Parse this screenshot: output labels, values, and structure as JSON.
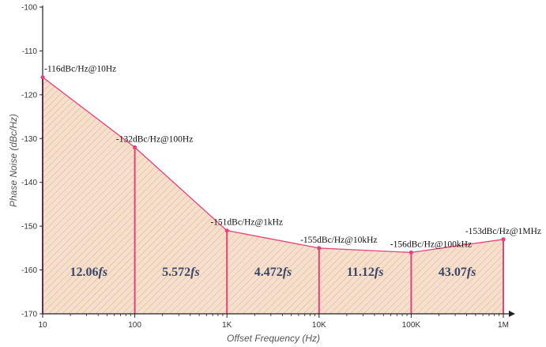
{
  "chart_data": {
    "type": "area",
    "title": "",
    "xlabel": "Offset Frequency (Hz)",
    "ylabel": "Phase Noise (dBc/Hz)",
    "x_scale": "log",
    "xlim": [
      10,
      1000000
    ],
    "ylim": [
      -170,
      -100
    ],
    "x_tick_values": [
      10,
      100,
      1000,
      10000,
      100000,
      1000000
    ],
    "x_tick_labels": [
      "10",
      "100",
      "1K",
      "10K",
      "100K",
      "1M"
    ],
    "y_tick_values": [
      -100,
      -110,
      -120,
      -130,
      -140,
      -150,
      -160,
      -170
    ],
    "y_tick_labels": [
      "-100",
      "-110",
      "-120",
      "-130",
      "-140",
      "-150",
      "-160",
      "-170"
    ],
    "grid": false,
    "points": [
      {
        "x": 10,
        "y": -116,
        "label": "-116dBc/Hz@10Hz"
      },
      {
        "x": 100,
        "y": -132,
        "label": "-132dBc/Hz@100Hz"
      },
      {
        "x": 1000,
        "y": -151,
        "label": "-151dBc/Hz@1kHz"
      },
      {
        "x": 10000,
        "y": -155,
        "label": "-155dBc/Hz@10kHz"
      },
      {
        "x": 100000,
        "y": -156,
        "label": "-156dBc/Hz@100kHz"
      },
      {
        "x": 1000000,
        "y": -153,
        "label": "-153dBc/Hz@1MHz"
      }
    ],
    "bands": [
      {
        "from": 10,
        "to": 100,
        "value": "12.06",
        "unit": "fs"
      },
      {
        "from": 100,
        "to": 1000,
        "value": "5.572",
        "unit": "fs"
      },
      {
        "from": 1000,
        "to": 10000,
        "value": "4.472",
        "unit": "fs"
      },
      {
        "from": 10000,
        "to": 100000,
        "value": "11.12",
        "unit": "fs"
      },
      {
        "from": 100000,
        "to": 1000000,
        "value": "43.07",
        "unit": "fs"
      }
    ],
    "colors": {
      "line": "#e8407a",
      "fill": "#f6e0cc",
      "hatch": "#c99a7a",
      "axis": "#222222"
    }
  }
}
